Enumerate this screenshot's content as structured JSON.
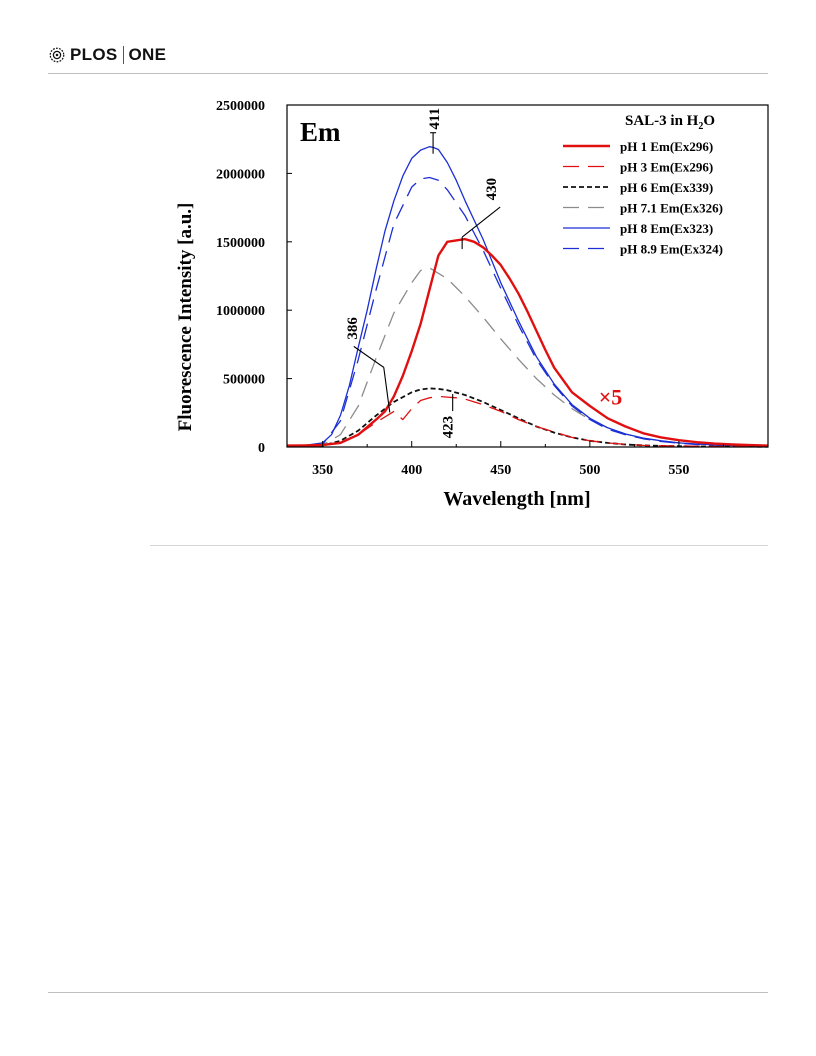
{
  "journal": {
    "name_left": "PLOS",
    "name_right": "ONE"
  },
  "chart_data": {
    "type": "line",
    "panel_label": "Em",
    "xlabel": "Wavelength [nm]",
    "ylabel": "Fluorescence Intensity [a.u.]",
    "xlim": [
      330,
      600
    ],
    "ylim": [
      0,
      2500000
    ],
    "xticks": [
      350,
      400,
      450,
      500,
      550
    ],
    "yticks": [
      0,
      500000,
      1000000,
      1500000,
      2000000,
      2500000
    ],
    "legend_title": "SAL-3 in H2O",
    "legend_position": "top-right",
    "grid": false,
    "series": [
      {
        "name": "pH 1 Em(Ex296)",
        "color": "#e01010",
        "style": "solid",
        "width": 2.4,
        "x": [
          330,
          340,
          350,
          360,
          370,
          380,
          385,
          390,
          395,
          400,
          405,
          410,
          415,
          420,
          425,
          430,
          435,
          440,
          445,
          450,
          455,
          460,
          465,
          470,
          475,
          480,
          490,
          500,
          510,
          520,
          530,
          540,
          550,
          560,
          570,
          580,
          590,
          600
        ],
        "y": [
          10000,
          12000,
          15000,
          30000,
          90000,
          200000,
          260000,
          370000,
          520000,
          700000,
          900000,
          1150000,
          1400000,
          1500000,
          1510000,
          1520000,
          1500000,
          1460000,
          1400000,
          1330000,
          1230000,
          1120000,
          990000,
          850000,
          710000,
          580000,
          400000,
          300000,
          210000,
          150000,
          100000,
          70000,
          50000,
          35000,
          25000,
          18000,
          14000,
          10000
        ]
      },
      {
        "name": "pH 3 Em(Ex296)",
        "color": "#e01010",
        "style": "long-dash",
        "width": 1.3,
        "x": [
          330,
          340,
          350,
          360,
          370,
          380,
          390,
          395,
          400,
          405,
          410,
          415,
          420,
          425,
          430,
          435,
          440,
          450,
          460,
          470,
          480,
          490,
          500,
          510,
          520,
          530,
          540,
          550,
          560,
          580,
          600
        ],
        "y": [
          5000,
          6000,
          10000,
          30000,
          90000,
          180000,
          260000,
          200000,
          280000,
          340000,
          360000,
          370000,
          365000,
          360000,
          350000,
          330000,
          310000,
          260000,
          200000,
          150000,
          110000,
          70000,
          45000,
          30000,
          20000,
          12000,
          9000,
          7000,
          5000,
          3000,
          2000
        ]
      },
      {
        "name": "pH 6 Em(Ex339)",
        "color": "#111111",
        "style": "short-dash",
        "width": 1.8,
        "x": [
          330,
          340,
          350,
          360,
          370,
          380,
          390,
          400,
          405,
          410,
          415,
          420,
          430,
          440,
          450,
          460,
          470,
          480,
          490,
          500,
          510,
          520,
          530,
          540,
          550,
          560,
          580,
          600
        ],
        "y": [
          5000,
          6000,
          10000,
          45000,
          120000,
          230000,
          330000,
          400000,
          420000,
          428000,
          425000,
          415000,
          380000,
          330000,
          270000,
          210000,
          150000,
          105000,
          70000,
          45000,
          30000,
          18000,
          12000,
          8000,
          6000,
          4000,
          3000,
          2000
        ]
      },
      {
        "name": "pH 7.1 Em(Ex326)",
        "color": "#8c8c8c",
        "style": "long-dash",
        "width": 1.3,
        "x": [
          330,
          340,
          350,
          360,
          370,
          380,
          390,
          400,
          405,
          410,
          415,
          420,
          430,
          440,
          450,
          460,
          470,
          480,
          490,
          500,
          510,
          520,
          530,
          540,
          550,
          560,
          580,
          600
        ],
        "y": [
          5000,
          8000,
          15000,
          90000,
          300000,
          650000,
          980000,
          1200000,
          1290000,
          1310000,
          1270000,
          1230000,
          1100000,
          950000,
          790000,
          640000,
          500000,
          380000,
          280000,
          200000,
          140000,
          95000,
          65000,
          45000,
          30000,
          20000,
          10000,
          5000
        ]
      },
      {
        "name": "pH 8 Em(Ex323)",
        "color": "#1c2fd4",
        "style": "solid",
        "width": 1.3,
        "x": [
          330,
          340,
          350,
          355,
          360,
          365,
          370,
          375,
          380,
          385,
          390,
          395,
          400,
          405,
          410,
          412,
          415,
          420,
          425,
          430,
          440,
          450,
          460,
          470,
          480,
          490,
          500,
          510,
          520,
          530,
          540,
          550,
          560,
          570,
          580,
          590,
          600
        ],
        "y": [
          10000,
          12000,
          30000,
          90000,
          230000,
          450000,
          730000,
          1000000,
          1300000,
          1580000,
          1800000,
          1980000,
          2110000,
          2170000,
          2195000,
          2190000,
          2175000,
          2080000,
          1950000,
          1800000,
          1520000,
          1200000,
          920000,
          660000,
          460000,
          310000,
          210000,
          140000,
          95000,
          65000,
          45000,
          30000,
          22000,
          15000,
          10000,
          7000,
          5000
        ]
      },
      {
        "name": "pH 8.9 Em(Ex324)",
        "color": "#1c2fd4",
        "style": "long-dash",
        "width": 1.3,
        "x": [
          330,
          340,
          350,
          360,
          370,
          380,
          390,
          400,
          405,
          410,
          415,
          420,
          430,
          440,
          450,
          460,
          470,
          480,
          490,
          500,
          510,
          520,
          530,
          540,
          550,
          560,
          580,
          600
        ],
        "y": [
          8000,
          10000,
          20000,
          190000,
          640000,
          1150000,
          1630000,
          1900000,
          1960000,
          1970000,
          1950000,
          1880000,
          1690000,
          1440000,
          1160000,
          890000,
          640000,
          450000,
          300000,
          200000,
          130000,
          90000,
          60000,
          40000,
          28000,
          18000,
          9000,
          5000
        ]
      }
    ],
    "annotations": [
      {
        "text": "411",
        "x": 412,
        "y": 2195000
      },
      {
        "text": "430",
        "x": 430,
        "y": 1520000
      },
      {
        "text": "386",
        "x": 386,
        "y": 370000
      },
      {
        "text": "423",
        "x": 423,
        "y": 365000
      },
      {
        "text": "×5",
        "x": 505,
        "y": 310000
      }
    ]
  }
}
